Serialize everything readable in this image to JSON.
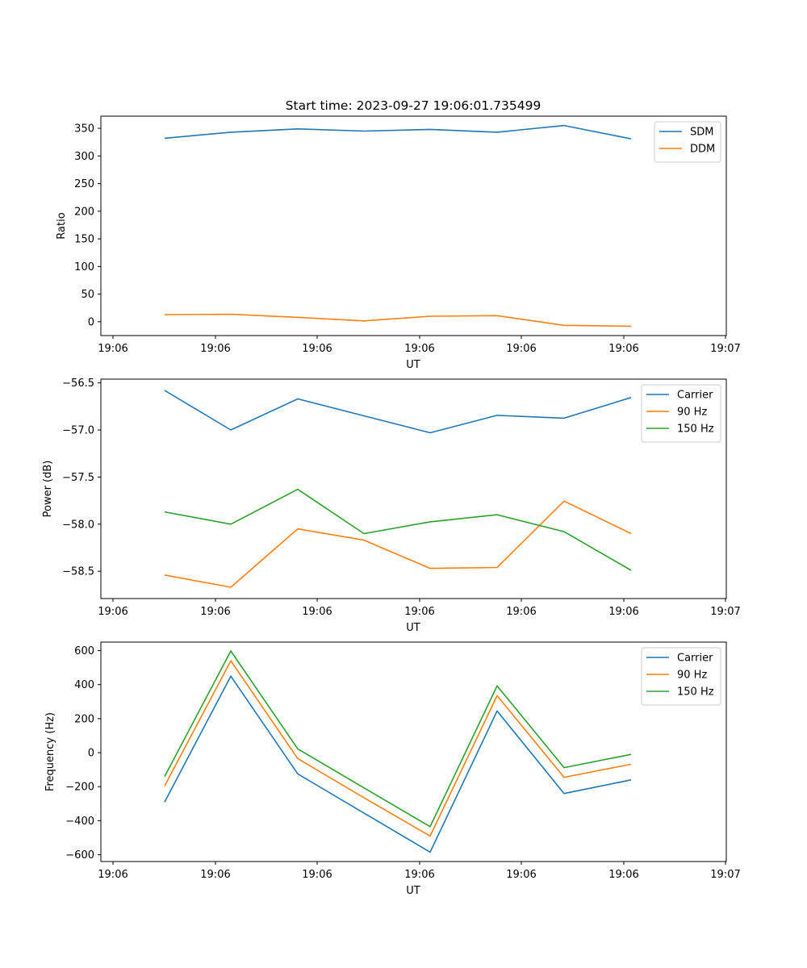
{
  "figure": {
    "title": "Start time: 2023-09-27 19:06:01.735499"
  },
  "chart_data": [
    {
      "type": "line",
      "name": "ratio",
      "x_tick_labels": [
        "19:06",
        "19:06",
        "19:06",
        "19:06",
        "19:06",
        "19:06",
        "19:07"
      ],
      "xlabel": "UT",
      "ylabel": "Ratio",
      "ylim": [
        -25,
        372
      ],
      "yticks": [
        0,
        50,
        100,
        150,
        200,
        250,
        300,
        350
      ],
      "ytick_labels": [
        "0",
        "50",
        "100",
        "150",
        "200",
        "250",
        "300",
        "350"
      ],
      "series": [
        {
          "name": "SDM",
          "color": "#1f77b4",
          "values": [
            332,
            343,
            349,
            345,
            348,
            343,
            355,
            331
          ]
        },
        {
          "name": "DDM",
          "color": "#ff7f0e",
          "values": [
            13,
            13.5,
            8,
            1.5,
            10,
            11,
            -6.5,
            -8
          ]
        }
      ],
      "legend_position": "upper right"
    },
    {
      "type": "line",
      "name": "power",
      "x_tick_labels": [
        "19:06",
        "19:06",
        "19:06",
        "19:06",
        "19:06",
        "19:06",
        "19:07"
      ],
      "xlabel": "UT",
      "ylabel": "Power (dB)",
      "ylim": [
        -58.79,
        -56.46
      ],
      "yticks": [
        -58.5,
        -58.0,
        -57.5,
        -57.0,
        -56.5
      ],
      "ytick_labels": [
        "−58.5",
        "−58.0",
        "−57.5",
        "−57.0",
        "−56.5"
      ],
      "series": [
        {
          "name": "Carrier",
          "color": "#1f77b4",
          "values": [
            -56.58,
            -57.0,
            -56.67,
            -56.85,
            -57.03,
            -56.845,
            -56.875,
            -56.655
          ]
        },
        {
          "name": "90 Hz",
          "color": "#ff7f0e",
          "values": [
            -58.54,
            -58.67,
            -58.05,
            -58.17,
            -58.47,
            -58.46,
            -57.755,
            -58.1
          ]
        },
        {
          "name": "150 Hz",
          "color": "#2ca02c",
          "values": [
            -57.87,
            -58.0,
            -57.63,
            -58.1,
            -57.975,
            -57.9,
            -58.08,
            -58.49
          ]
        }
      ],
      "legend_position": "upper right"
    },
    {
      "type": "line",
      "name": "frequency",
      "x_tick_labels": [
        "19:06",
        "19:06",
        "19:06",
        "19:06",
        "19:06",
        "19:06",
        "19:07"
      ],
      "xlabel": "UT",
      "ylabel": "Frequency (Hz)",
      "ylim": [
        -640,
        650
      ],
      "yticks": [
        -600,
        -400,
        -200,
        0,
        200,
        400,
        600
      ],
      "ytick_labels": [
        "−600",
        "−400",
        "−200",
        "0",
        "200",
        "400",
        "600"
      ],
      "series": [
        {
          "name": "Carrier",
          "color": "#1f77b4",
          "values": [
            -290,
            450,
            -125,
            -355,
            -585,
            245,
            -240,
            -160
          ]
        },
        {
          "name": "90 Hz",
          "color": "#ff7f0e",
          "values": [
            -195,
            540,
            -35,
            -265,
            -490,
            335,
            -145,
            -68
          ]
        },
        {
          "name": "150 Hz",
          "color": "#2ca02c",
          "values": [
            -140,
            598,
            22,
            -207,
            -435,
            393,
            -88,
            -10
          ]
        }
      ],
      "legend_position": "upper right"
    }
  ]
}
